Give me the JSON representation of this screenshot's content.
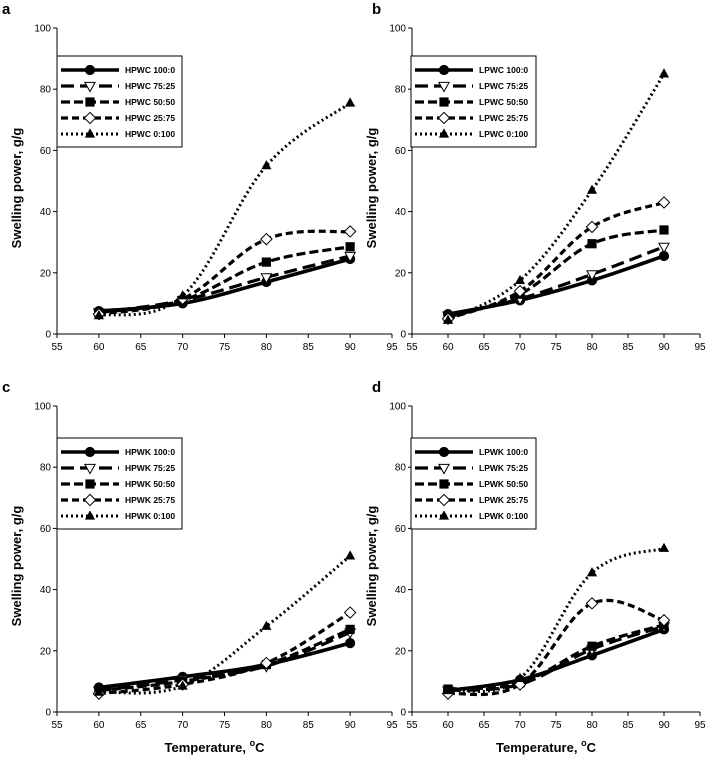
{
  "chart_data": [
    {
      "panel": "a",
      "type": "line",
      "xlabel": "",
      "ylabel": "Swelling power, g/g",
      "xlim": [
        55,
        95
      ],
      "ylim": [
        0,
        100
      ],
      "xticks": [
        "55",
        "60",
        "65",
        "70",
        "75",
        "80",
        "85",
        "90",
        "95"
      ],
      "yticks": [
        "0",
        "20",
        "40",
        "60",
        "80",
        "100"
      ],
      "legend_position": "top-left",
      "series": [
        {
          "name": "HPWC 100:0",
          "x": [
            60,
            70,
            80,
            90
          ],
          "values": [
            7.5,
            10,
            17,
            24.5
          ]
        },
        {
          "name": "HPWC 75:25",
          "x": [
            60,
            70,
            80,
            90
          ],
          "values": [
            7,
            11,
            18.5,
            25.5
          ]
        },
        {
          "name": "HPWC 50:50",
          "x": [
            60,
            70,
            80,
            90
          ],
          "values": [
            7,
            11,
            23.5,
            28.5
          ]
        },
        {
          "name": "HPWC 25:75",
          "x": [
            60,
            70,
            80,
            90
          ],
          "values": [
            6.5,
            11.5,
            31,
            33.5
          ]
        },
        {
          "name": "HPWC 0:100",
          "x": [
            60,
            70,
            80,
            90
          ],
          "values": [
            6,
            12.5,
            55,
            75.5
          ]
        }
      ]
    },
    {
      "panel": "b",
      "type": "line",
      "xlabel": "",
      "ylabel": "Swelling power, g/g",
      "xlim": [
        55,
        95
      ],
      "ylim": [
        0,
        100
      ],
      "xticks": [
        "55",
        "60",
        "65",
        "70",
        "75",
        "80",
        "85",
        "90",
        "95"
      ],
      "yticks": [
        "0",
        "20",
        "40",
        "60",
        "80",
        "100"
      ],
      "legend_position": "top-left",
      "series": [
        {
          "name": "LPWC 100:0",
          "x": [
            60,
            70,
            80,
            90
          ],
          "values": [
            6.5,
            11,
            17.5,
            25.5
          ]
        },
        {
          "name": "LPWC 75:25",
          "x": [
            60,
            70,
            80,
            90
          ],
          "values": [
            6,
            11.5,
            19.5,
            28.5
          ]
        },
        {
          "name": "LPWC 50:50",
          "x": [
            60,
            70,
            80,
            90
          ],
          "values": [
            5.5,
            13,
            29.5,
            34
          ]
        },
        {
          "name": "LPWC 25:75",
          "x": [
            60,
            70,
            80,
            90
          ],
          "values": [
            5,
            14,
            35,
            43
          ]
        },
        {
          "name": "LPWC 0:100",
          "x": [
            60,
            70,
            80,
            90
          ],
          "values": [
            4.5,
            17.5,
            47,
            85
          ]
        }
      ]
    },
    {
      "panel": "c",
      "type": "line",
      "xlabel": "Temperature, °C",
      "ylabel": "Swelling power, g/g",
      "xlim": [
        55,
        95
      ],
      "ylim": [
        0,
        100
      ],
      "xticks": [
        "55",
        "60",
        "65",
        "70",
        "75",
        "80",
        "85",
        "90",
        "95"
      ],
      "yticks": [
        "0",
        "20",
        "40",
        "60",
        "80",
        "100"
      ],
      "legend_position": "top-left",
      "series": [
        {
          "name": "HPWK 100:0",
          "x": [
            60,
            70,
            80,
            90
          ],
          "values": [
            8,
            11.5,
            15.5,
            22.5
          ]
        },
        {
          "name": "HPWK 75:25",
          "x": [
            60,
            70,
            80,
            90
          ],
          "values": [
            7,
            10.5,
            15,
            26
          ]
        },
        {
          "name": "HPWK 50:50",
          "x": [
            60,
            70,
            80,
            90
          ],
          "values": [
            7,
            10,
            15.5,
            27
          ]
        },
        {
          "name": "HPWK 25:75",
          "x": [
            60,
            70,
            80,
            90
          ],
          "values": [
            6,
            9,
            16,
            32.5
          ]
        },
        {
          "name": "HPWK 0:100",
          "x": [
            60,
            70,
            80,
            90
          ],
          "values": [
            6.5,
            8.5,
            28,
            51
          ]
        }
      ]
    },
    {
      "panel": "d",
      "type": "line",
      "xlabel": "Temperature, °C",
      "ylabel": "Swelling power, g/g",
      "xlim": [
        55,
        95
      ],
      "ylim": [
        0,
        100
      ],
      "xticks": [
        "55",
        "60",
        "65",
        "70",
        "75",
        "80",
        "85",
        "90",
        "95"
      ],
      "yticks": [
        "0",
        "20",
        "40",
        "60",
        "80",
        "100"
      ],
      "legend_position": "top-left",
      "series": [
        {
          "name": "LPWK 100:0",
          "x": [
            60,
            70,
            80,
            90
          ],
          "values": [
            7,
            10.5,
            18.5,
            27
          ]
        },
        {
          "name": "LPWK 75:25",
          "x": [
            60,
            70,
            80,
            90
          ],
          "values": [
            7,
            9,
            20.5,
            28
          ]
        },
        {
          "name": "LPWK 50:50",
          "x": [
            60,
            70,
            80,
            90
          ],
          "values": [
            7.5,
            9.5,
            21.5,
            28.5
          ]
        },
        {
          "name": "LPWK 25:75",
          "x": [
            60,
            70,
            80,
            90
          ],
          "values": [
            6,
            9,
            35.5,
            30
          ]
        },
        {
          "name": "LPWK 0:100",
          "x": [
            60,
            70,
            80,
            90
          ],
          "values": [
            7,
            11,
            45.5,
            53.5
          ]
        }
      ]
    }
  ]
}
